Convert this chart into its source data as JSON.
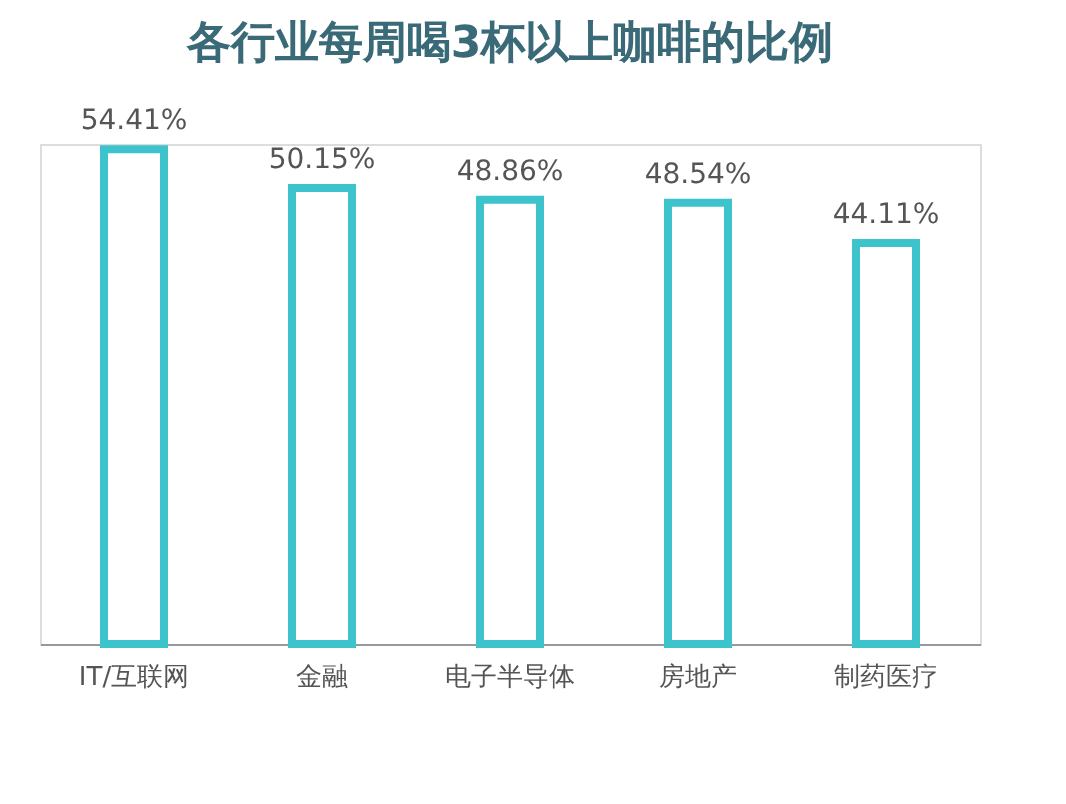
{
  "chart_data": {
    "type": "bar",
    "title": "各行业每周喝3杯以上咖啡的比例",
    "categories": [
      "IT/互联网",
      "金融",
      "电子半导体",
      "房地产",
      "制药医疗"
    ],
    "values": [
      54.41,
      50.15,
      48.86,
      48.54,
      44.11
    ],
    "value_labels": [
      "54.41%",
      "50.15%",
      "48.86%",
      "48.54%",
      "44.11%"
    ],
    "color": "#3cc3cc",
    "grid": false,
    "tick_labels": "x"
  }
}
